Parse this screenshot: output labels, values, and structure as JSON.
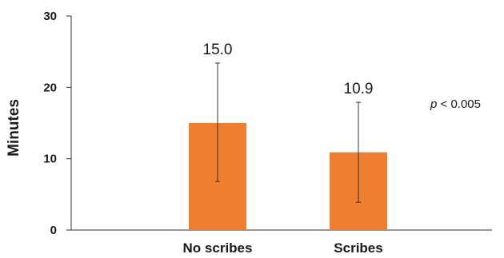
{
  "chart_data": {
    "type": "bar",
    "categories": [
      "No scribes",
      "Scribes"
    ],
    "values": [
      15.0,
      10.9
    ],
    "data_labels": [
      "15.0",
      "10.9"
    ],
    "error_bars": [
      {
        "low": 6.8,
        "high": 23.4
      },
      {
        "low": 3.9,
        "high": 17.9
      }
    ],
    "title": "",
    "xlabel": "",
    "ylabel": "Minutes",
    "ylim": [
      0,
      30
    ],
    "yticks": [
      0,
      10,
      20,
      30
    ],
    "ytick_labels": [
      "0",
      "10",
      "20",
      "30"
    ],
    "grid": false,
    "legend": "none",
    "bar_color": "#ef7f2f",
    "annotation": {
      "prefix": "p",
      "text": " < 0.005"
    }
  }
}
